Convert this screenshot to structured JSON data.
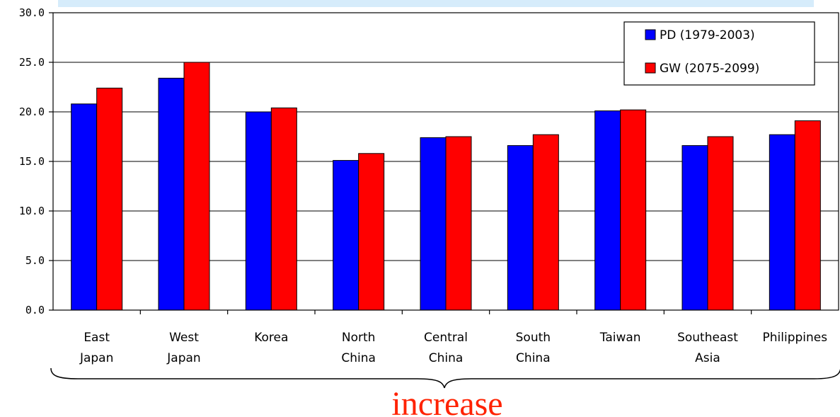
{
  "chart_data": {
    "type": "bar",
    "categories": [
      [
        "East",
        "Japan"
      ],
      [
        "West",
        "Japan"
      ],
      [
        "Korea"
      ],
      [
        "North",
        "China"
      ],
      [
        "Central",
        "China"
      ],
      [
        "South",
        "China"
      ],
      [
        "Taiwan"
      ],
      [
        "Southeast",
        "Asia"
      ],
      [
        "Philippines"
      ]
    ],
    "series": [
      {
        "name": "PD (1979-2003)",
        "color": "#0000ff",
        "values": [
          20.8,
          23.4,
          20.0,
          15.1,
          17.4,
          16.6,
          20.1,
          16.6,
          17.7
        ]
      },
      {
        "name": "GW (2075-2099)",
        "color": "#ff0000",
        "values": [
          22.4,
          25.0,
          20.4,
          15.8,
          17.5,
          17.7,
          20.2,
          17.5,
          19.1
        ]
      }
    ],
    "ylim": [
      0,
      30
    ],
    "yticks": [
      "0.0",
      "5.0",
      "10.0",
      "15.0",
      "20.0",
      "25.0",
      "30.0"
    ],
    "grid": true,
    "legend_position": "top-right",
    "annotation": {
      "text": "increase",
      "color": "#ff2200"
    }
  }
}
